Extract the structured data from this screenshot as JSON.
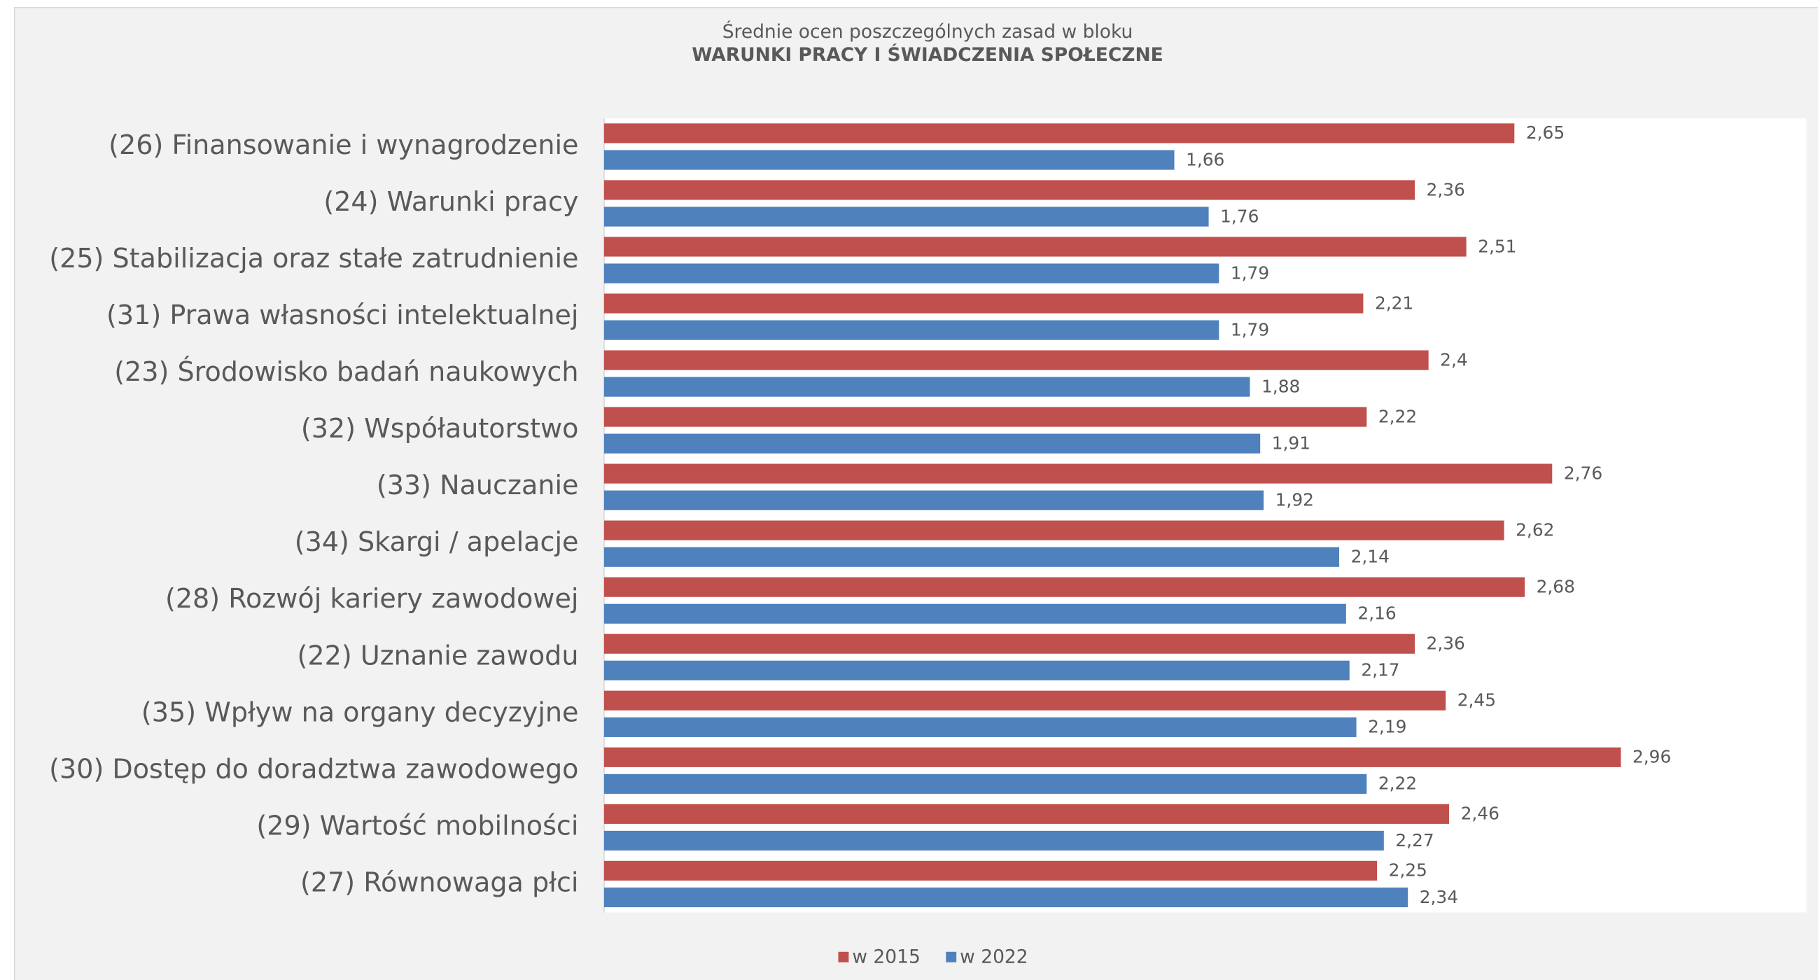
{
  "chart_data": {
    "type": "barh",
    "title": "Średnie ocen poszczególnych zasad w bloku",
    "subtitle": "WARUNKI PRACY I ŚWIADCZENIA SPOŁECZNE",
    "categories": [
      "(26) Finansowanie i wynagrodzenie",
      "(24) Warunki pracy",
      "(25) Stabilizacja oraz stałe zatrudnienie",
      "(31) Prawa własności intelektualnej",
      "(23) Środowisko badań naukowych",
      "(32) Współautorstwo",
      "(33) Nauczanie",
      "(34) Skargi / apelacje",
      "(28) Rozwój kariery zawodowej",
      "(22) Uznanie zawodu",
      "(35) Wpływ na organy decyzyjne",
      "(30) Dostęp do doradztwa zawodowego",
      "(29) Wartość mobilności",
      "(27) Równowaga płci"
    ],
    "series": [
      {
        "name": "w 2015",
        "color": "#c0504d",
        "values": [
          2.65,
          2.36,
          2.51,
          2.21,
          2.4,
          2.22,
          2.76,
          2.62,
          2.68,
          2.36,
          2.45,
          2.96,
          2.46,
          2.25
        ],
        "value_labels": [
          "2,65",
          "2,36",
          "2,51",
          "2,21",
          "2,4",
          "2,22",
          "2,76",
          "2,62",
          "2,68",
          "2,36",
          "2,45",
          "2,96",
          "2,46",
          "2,25"
        ]
      },
      {
        "name": "w 2022",
        "color": "#4f81bd",
        "values": [
          1.66,
          1.76,
          1.79,
          1.79,
          1.88,
          1.91,
          1.92,
          2.14,
          2.16,
          2.17,
          2.19,
          2.22,
          2.27,
          2.34
        ],
        "value_labels": [
          "1,66",
          "1,76",
          "1,79",
          "1,79",
          "1,88",
          "1,91",
          "1,92",
          "2,14",
          "2,16",
          "2,17",
          "2,19",
          "2,22",
          "2,27",
          "2,34"
        ]
      }
    ],
    "xlim": [
      0,
      3.5
    ],
    "grid": false,
    "legend": "bottom"
  }
}
